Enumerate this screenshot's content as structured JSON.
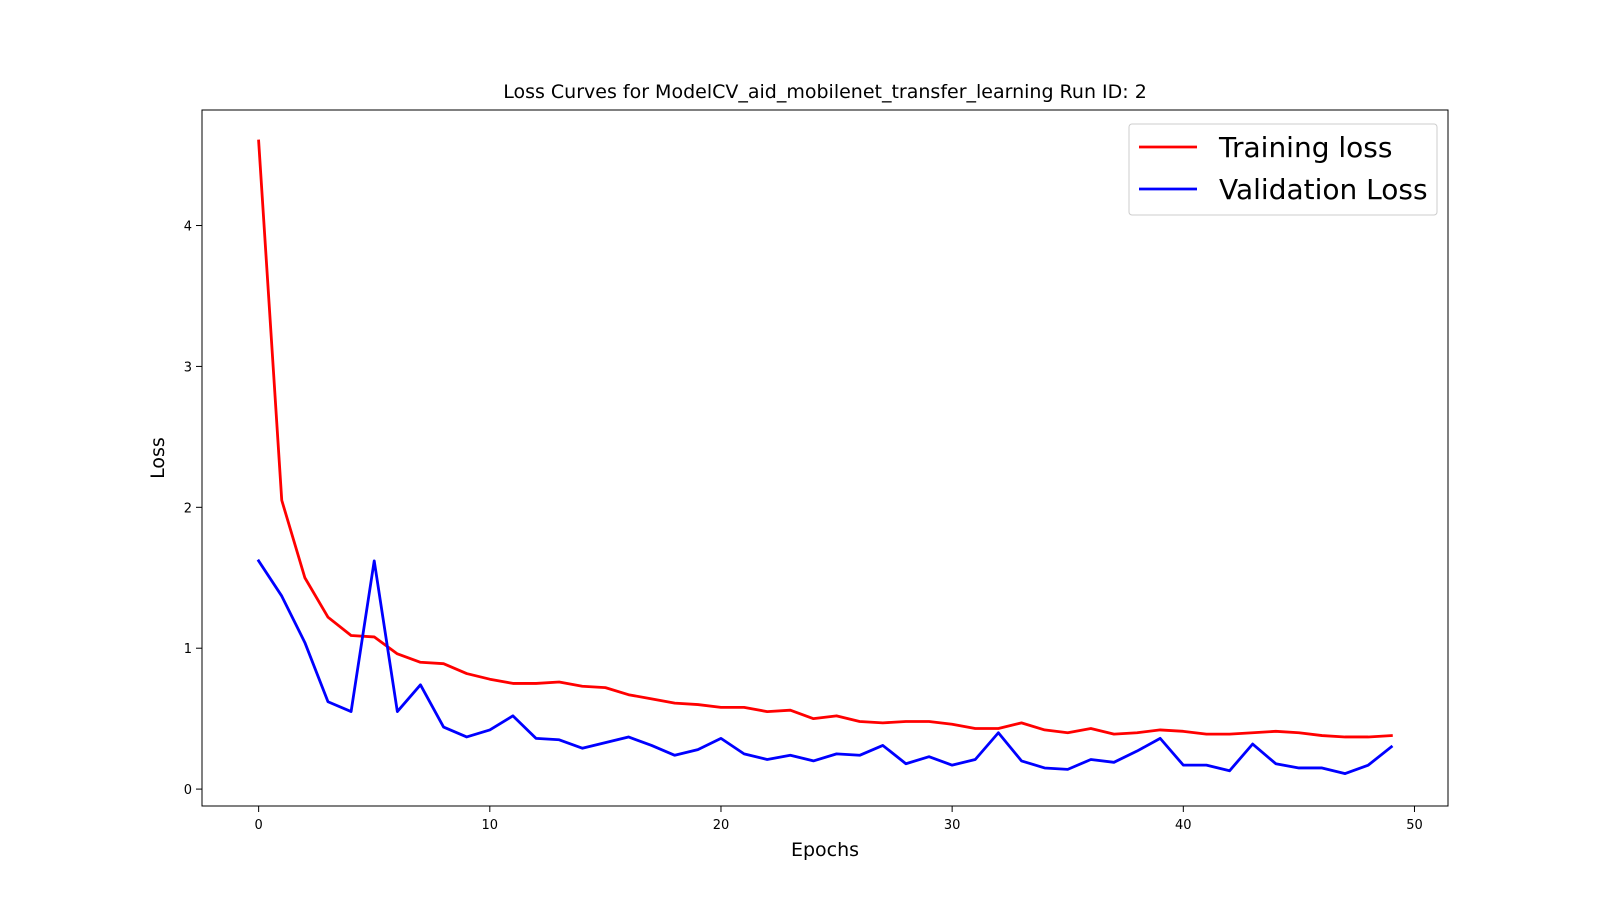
{
  "chart_data": {
    "type": "line",
    "title": "Loss Curves for ModelCV_aid_mobilenet_transfer_learning Run ID: 2",
    "xlabel": "Epochs",
    "ylabel": "Loss",
    "xlim": [
      -2.45,
      51.45
    ],
    "ylim": [
      -0.12,
      4.82
    ],
    "xticks": [
      0,
      10,
      20,
      30,
      40,
      50
    ],
    "yticks": [
      0,
      1,
      2,
      3,
      4
    ],
    "grid": false,
    "legend_position": "top-right",
    "x": [
      0,
      1,
      2,
      3,
      4,
      5,
      6,
      7,
      8,
      9,
      10,
      11,
      12,
      13,
      14,
      15,
      16,
      17,
      18,
      19,
      20,
      21,
      22,
      23,
      24,
      25,
      26,
      27,
      28,
      29,
      30,
      31,
      32,
      33,
      34,
      35,
      36,
      37,
      38,
      39,
      40,
      41,
      42,
      43,
      44,
      45,
      46,
      47,
      48,
      49
    ],
    "series": [
      {
        "name": "Training loss",
        "color": "#ff0000",
        "values": [
          4.6,
          2.05,
          1.5,
          1.22,
          1.09,
          1.08,
          0.96,
          0.9,
          0.89,
          0.82,
          0.78,
          0.75,
          0.75,
          0.76,
          0.73,
          0.72,
          0.67,
          0.64,
          0.61,
          0.6,
          0.58,
          0.58,
          0.55,
          0.56,
          0.5,
          0.52,
          0.48,
          0.47,
          0.48,
          0.48,
          0.46,
          0.43,
          0.43,
          0.47,
          0.42,
          0.4,
          0.43,
          0.39,
          0.4,
          0.42,
          0.41,
          0.39,
          0.39,
          0.4,
          0.41,
          0.4,
          0.38,
          0.37,
          0.37,
          0.38
        ]
      },
      {
        "name": "Validation Loss",
        "color": "#0000ff",
        "values": [
          1.62,
          1.37,
          1.04,
          0.62,
          0.55,
          1.62,
          0.55,
          0.74,
          0.44,
          0.37,
          0.42,
          0.52,
          0.36,
          0.35,
          0.29,
          0.33,
          0.37,
          0.31,
          0.24,
          0.28,
          0.36,
          0.25,
          0.21,
          0.24,
          0.2,
          0.25,
          0.24,
          0.31,
          0.18,
          0.23,
          0.17,
          0.21,
          0.4,
          0.2,
          0.15,
          0.14,
          0.21,
          0.19,
          0.27,
          0.36,
          0.17,
          0.17,
          0.13,
          0.32,
          0.18,
          0.15,
          0.15,
          0.11,
          0.17,
          0.3
        ]
      }
    ]
  }
}
